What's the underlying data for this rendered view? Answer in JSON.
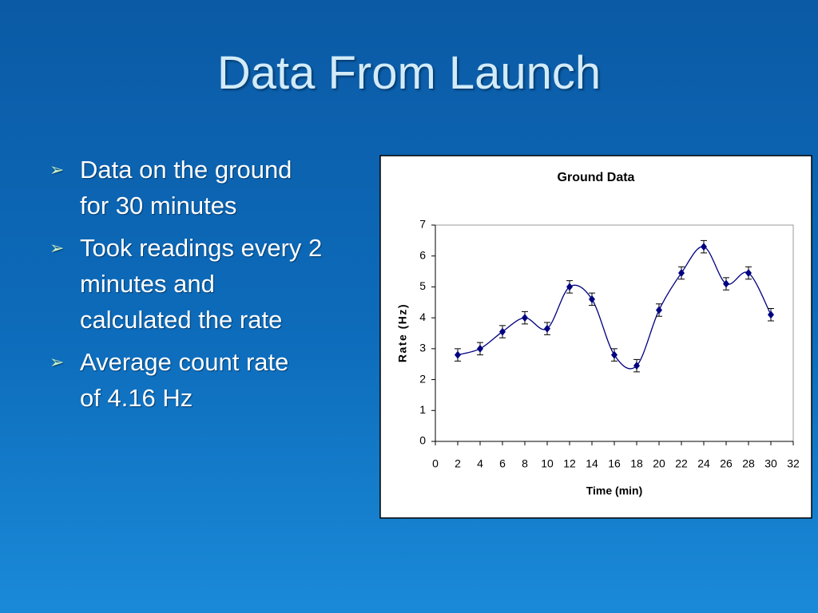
{
  "slide": {
    "title": "Data From Launch",
    "bullets": [
      {
        "lines": [
          "Data on the ground",
          "for 30 minutes"
        ]
      },
      {
        "lines": [
          "Took readings every 2",
          "minutes and",
          "calculated the rate"
        ]
      },
      {
        "lines": [
          "Average count rate",
          "of 4.16 Hz"
        ]
      }
    ]
  },
  "chart_data": {
    "type": "line",
    "smooth": true,
    "marker": "diamond",
    "title": "Ground Data",
    "x_label": "Time (min)",
    "y_label": "Rate (Hz)",
    "x": [
      2,
      4,
      6,
      8,
      10,
      12,
      14,
      16,
      18,
      20,
      22,
      24,
      26,
      28,
      30
    ],
    "values": [
      2.8,
      3.0,
      3.55,
      4.0,
      3.65,
      5.0,
      4.6,
      2.8,
      2.45,
      4.25,
      5.45,
      6.3,
      5.1,
      5.45,
      4.1
    ],
    "errors": [
      0.2,
      0.2,
      0.2,
      0.2,
      0.2,
      0.2,
      0.2,
      0.2,
      0.2,
      0.2,
      0.2,
      0.2,
      0.2,
      0.2,
      0.2
    ],
    "color": "#000080",
    "xlim": [
      0,
      32
    ],
    "xticks": [
      0,
      2,
      4,
      6,
      8,
      10,
      12,
      14,
      16,
      18,
      20,
      22,
      24,
      26,
      28,
      30,
      32
    ],
    "ylim": [
      0,
      7
    ],
    "yticks": [
      0,
      1,
      2,
      3,
      4,
      5,
      6,
      7
    ],
    "grid": false
  }
}
